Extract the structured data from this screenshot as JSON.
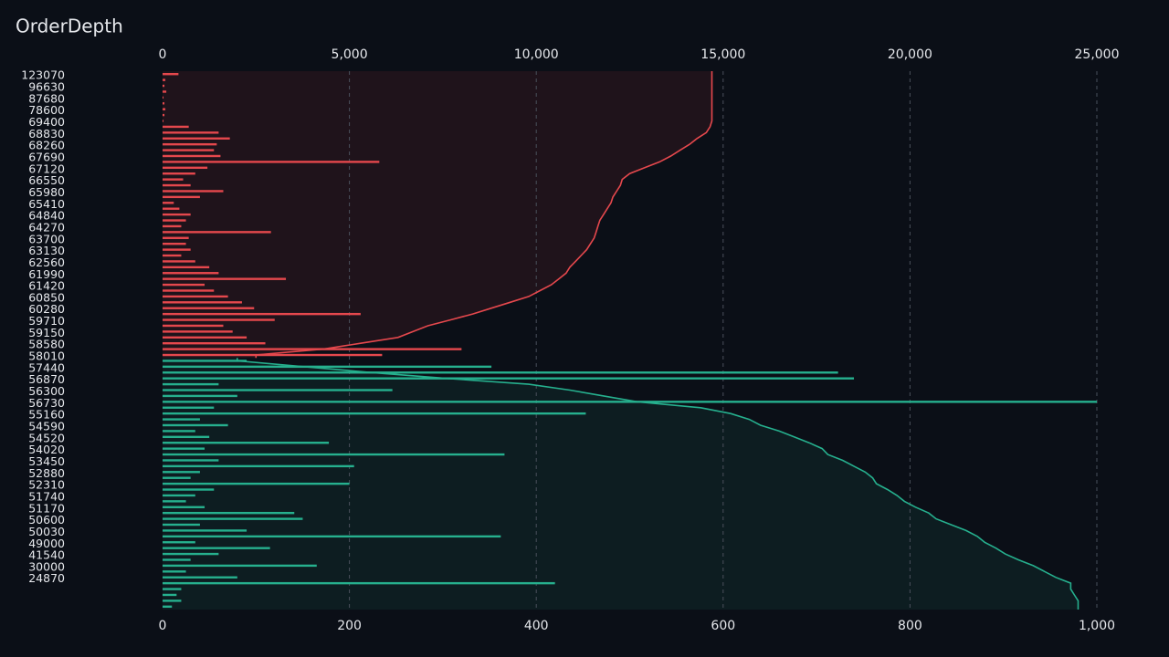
{
  "chart_data": {
    "type": "depth",
    "title": "OrderDepth",
    "categories": [
      "123070",
      null,
      "96630",
      null,
      "87680",
      null,
      "78600",
      null,
      "69400",
      null,
      "68830",
      null,
      "68260",
      null,
      "67690",
      null,
      "67120",
      null,
      "66550",
      null,
      "65980",
      null,
      "65410",
      null,
      "64840",
      null,
      "64270",
      null,
      "63700",
      null,
      "63130",
      null,
      "62560",
      null,
      "61990",
      null,
      "61420",
      null,
      "60850",
      null,
      "60280",
      null,
      "59710",
      null,
      "59150",
      null,
      "58580",
      null,
      "58010",
      null,
      "57440",
      null,
      "56870",
      null,
      "56300",
      null,
      "56730",
      null,
      "55160",
      null,
      "54590",
      null,
      "54520",
      null,
      "54020",
      null,
      "53450",
      null,
      "52880",
      null,
      "52310",
      null,
      "51740",
      null,
      "51170",
      null,
      "50600",
      null,
      "50030",
      null,
      "49000",
      null,
      "41540",
      null,
      "30000",
      null,
      "24870",
      null,
      null,
      null,
      null,
      null
    ],
    "xlim": [
      0,
      1000
    ],
    "xticks": [
      0,
      200,
      400,
      600,
      800,
      {
        "value": 1000,
        "label": "1,000"
      }
    ],
    "x2lim": [
      0,
      25000
    ],
    "x2ticks": [
      0,
      {
        "value": 5000,
        "label": "5,000"
      },
      {
        "value": 10000,
        "label": "10,000"
      },
      {
        "value": 15000,
        "label": "15,000"
      },
      {
        "value": 20000,
        "label": "20,000"
      },
      {
        "value": 25000,
        "label": "25,000"
      }
    ],
    "grid": true,
    "series": [
      {
        "color": "#e5484d",
        "values": [
          17,
          3,
          2,
          4,
          1,
          2,
          3,
          2,
          1,
          28,
          60,
          72,
          58,
          55,
          62,
          232,
          48,
          35,
          22,
          30,
          65,
          40,
          12,
          18,
          30,
          25,
          20,
          116,
          28,
          25,
          30,
          20,
          35,
          50,
          60,
          132,
          45,
          55,
          70,
          85,
          98,
          212,
          120,
          65,
          75,
          90,
          110,
          320,
          235,
          null,
          null,
          null,
          null,
          null,
          null,
          null,
          null,
          null,
          null,
          null,
          null,
          null,
          null,
          null,
          null,
          null,
          null,
          null,
          null,
          null,
          null,
          null,
          null,
          null,
          null,
          null,
          null,
          null,
          null,
          null,
          null,
          null,
          null,
          null,
          null,
          null,
          null,
          null,
          null,
          null,
          null,
          null
        ]
      },
      {
        "color": "#e5484d",
        "axis": "x2",
        "values": [
          14700,
          14700,
          14700,
          14700,
          14700,
          14700,
          14700,
          14700,
          14700,
          14650,
          14550,
          14300,
          14100,
          13850,
          13600,
          13300,
          12900,
          12500,
          12300,
          12250,
          12150,
          12050,
          12000,
          11900,
          11800,
          11700,
          11650,
          11600,
          11550,
          11450,
          11350,
          11200,
          11050,
          10900,
          10800,
          10600,
          10400,
          10100,
          9800,
          9300,
          8800,
          8300,
          7700,
          7100,
          6700,
          6300,
          5300,
          4300,
          2500,
          null,
          null,
          null,
          null,
          null,
          null,
          null,
          null,
          null,
          null,
          null,
          null,
          null,
          null,
          null,
          null,
          null,
          null,
          null,
          null,
          null,
          null,
          null,
          null,
          null,
          null,
          null,
          null,
          null,
          null,
          null,
          null,
          null,
          null,
          null,
          null,
          null,
          null,
          null,
          null,
          null,
          null,
          null
        ]
      },
      {
        "color": "#26b08e",
        "values": [
          null,
          null,
          null,
          null,
          null,
          null,
          null,
          null,
          null,
          null,
          null,
          null,
          null,
          null,
          null,
          null,
          null,
          null,
          null,
          null,
          null,
          null,
          null,
          null,
          null,
          null,
          null,
          null,
          null,
          null,
          null,
          null,
          null,
          null,
          null,
          null,
          null,
          null,
          null,
          null,
          null,
          null,
          null,
          null,
          null,
          null,
          null,
          null,
          null,
          90,
          352,
          723,
          740,
          60,
          246,
          80,
          1000,
          55,
          453,
          40,
          70,
          35,
          50,
          178,
          45,
          366,
          60,
          205,
          40,
          30,
          200,
          55,
          35,
          25,
          45,
          141,
          150,
          40,
          90,
          362,
          35,
          115,
          60,
          30,
          165,
          25,
          80,
          420,
          20,
          15,
          20,
          10
        ]
      },
      {
        "color": "#26b08e",
        "axis": "x2",
        "values": [
          null,
          null,
          null,
          null,
          null,
          null,
          null,
          null,
          null,
          null,
          null,
          null,
          null,
          null,
          null,
          null,
          null,
          null,
          null,
          null,
          null,
          null,
          null,
          null,
          null,
          null,
          null,
          null,
          null,
          null,
          null,
          null,
          null,
          null,
          null,
          null,
          null,
          null,
          null,
          null,
          null,
          null,
          null,
          null,
          null,
          null,
          null,
          null,
          null,
          2000,
          3800,
          5600,
          7600,
          9800,
          10900,
          11800,
          12700,
          14400,
          15200,
          15700,
          16000,
          16500,
          16900,
          17300,
          17650,
          17800,
          18200,
          18500,
          18800,
          19000,
          19100,
          19400,
          19650,
          19850,
          20150,
          20500,
          20700,
          21100,
          21500,
          21800,
          22000,
          22300,
          22550,
          22900,
          23300,
          23600,
          23900,
          24300,
          24300,
          24400,
          24500,
          24500
        ]
      }
    ]
  }
}
